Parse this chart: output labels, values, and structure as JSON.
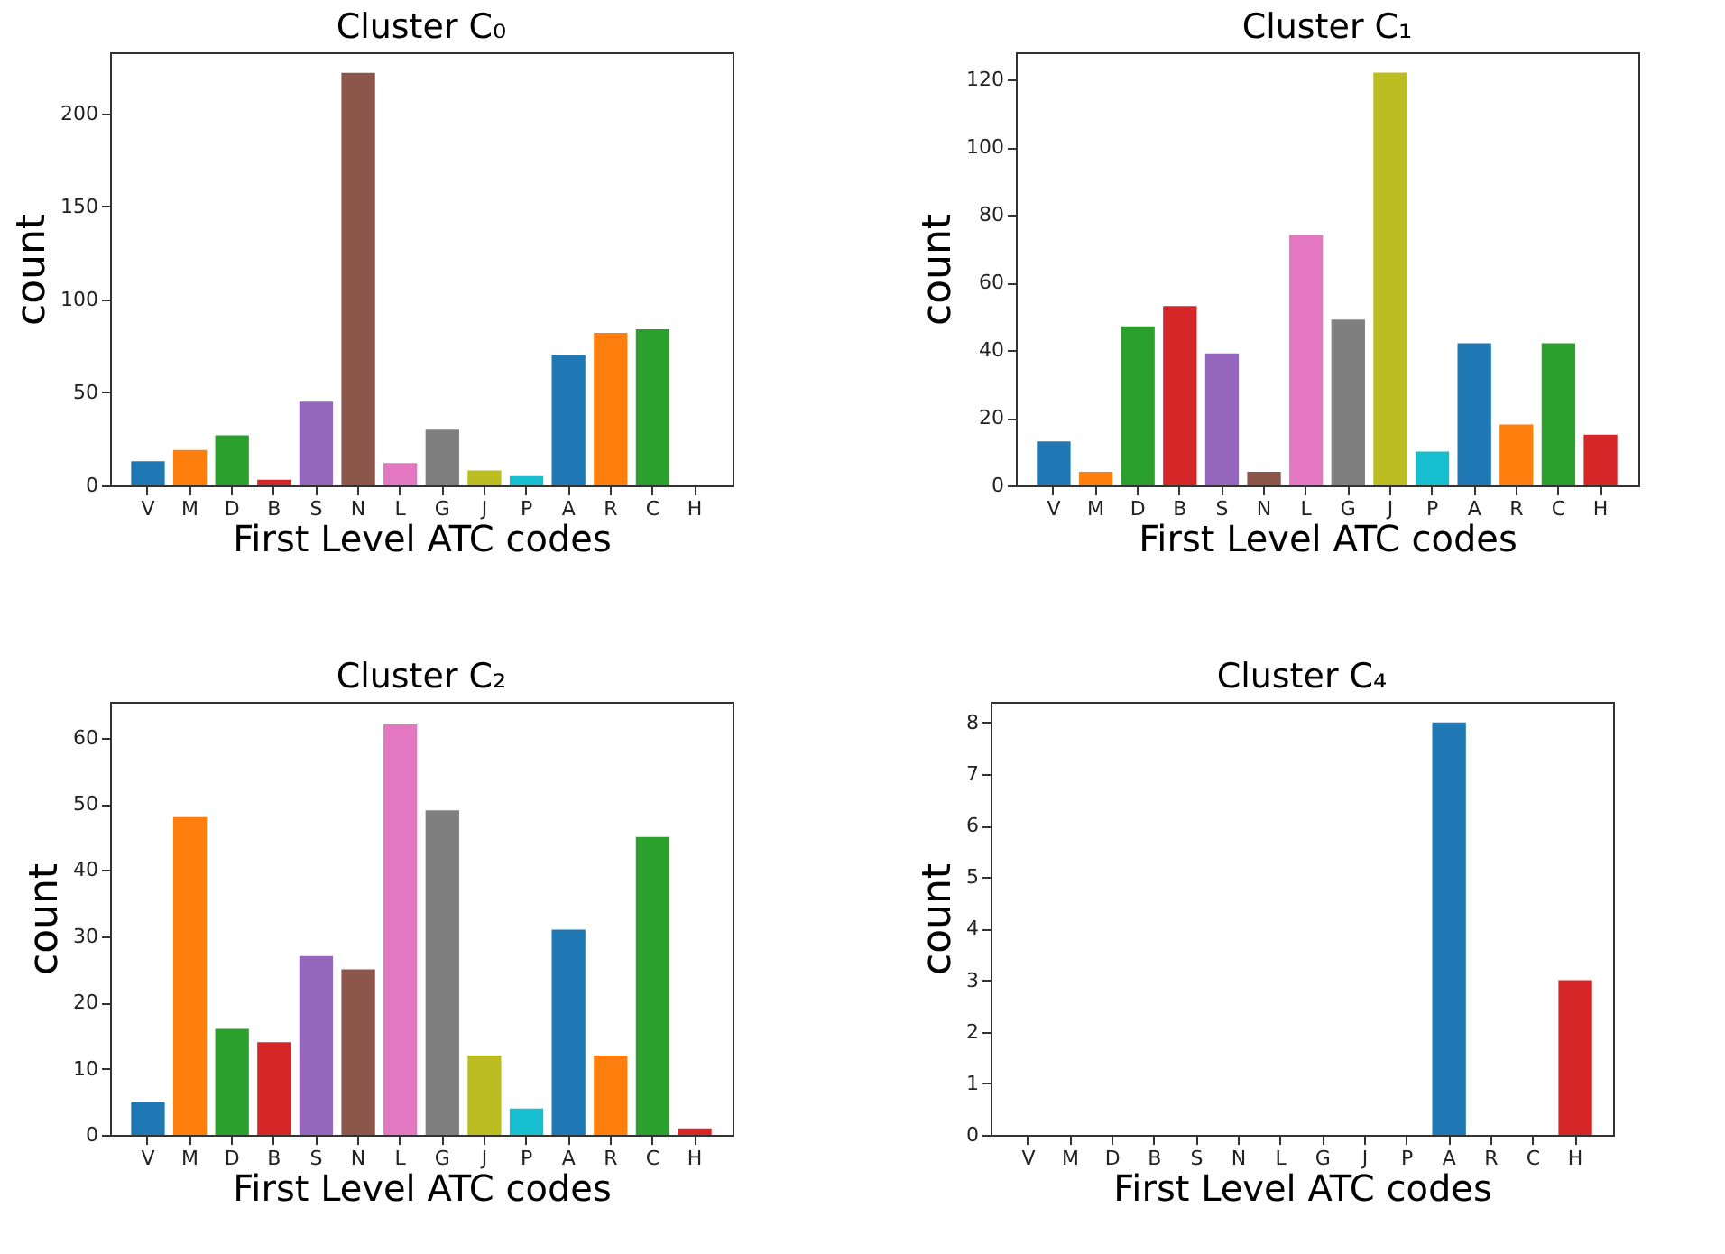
{
  "chart_data": [
    {
      "type": "bar",
      "title": "Cluster C₀",
      "xlabel": "First Level ATC codes",
      "ylabel": "count",
      "categories": [
        "V",
        "M",
        "D",
        "B",
        "S",
        "N",
        "L",
        "G",
        "J",
        "P",
        "A",
        "R",
        "C",
        "H"
      ],
      "values": [
        13,
        19,
        27,
        3,
        45,
        222,
        12,
        30,
        8,
        5,
        70,
        82,
        84,
        0
      ],
      "colors": [
        "#1f77b4",
        "#ff7f0e",
        "#2ca02c",
        "#d62728",
        "#9467bd",
        "#8c564b",
        "#e377c2",
        "#7f7f7f",
        "#bcbd22",
        "#17becf",
        "#1f77b4",
        "#ff7f0e",
        "#2ca02c",
        "#d62728"
      ],
      "ylim": [
        0,
        233
      ],
      "yticks": [
        0,
        50,
        100,
        150,
        200
      ],
      "grid": false,
      "legend": false
    },
    {
      "type": "bar",
      "title": "Cluster C₁",
      "xlabel": "First Level ATC codes",
      "ylabel": "count",
      "categories": [
        "V",
        "M",
        "D",
        "B",
        "S",
        "N",
        "L",
        "G",
        "J",
        "P",
        "A",
        "R",
        "C",
        "H"
      ],
      "values": [
        13,
        4,
        47,
        53,
        39,
        4,
        74,
        49,
        122,
        10,
        42,
        18,
        42,
        15
      ],
      "colors": [
        "#1f77b4",
        "#ff7f0e",
        "#2ca02c",
        "#d62728",
        "#9467bd",
        "#8c564b",
        "#e377c2",
        "#7f7f7f",
        "#bcbd22",
        "#17becf",
        "#1f77b4",
        "#ff7f0e",
        "#2ca02c",
        "#d62728"
      ],
      "ylim": [
        0,
        128
      ],
      "yticks": [
        0,
        20,
        40,
        60,
        80,
        100,
        120
      ],
      "grid": false,
      "legend": false
    },
    {
      "type": "bar",
      "title": "Cluster C₂",
      "xlabel": "First Level ATC codes",
      "ylabel": "count",
      "categories": [
        "V",
        "M",
        "D",
        "B",
        "S",
        "N",
        "L",
        "G",
        "J",
        "P",
        "A",
        "R",
        "C",
        "H"
      ],
      "values": [
        5,
        48,
        16,
        14,
        27,
        25,
        62,
        49,
        12,
        4,
        31,
        12,
        45,
        1
      ],
      "colors": [
        "#1f77b4",
        "#ff7f0e",
        "#2ca02c",
        "#d62728",
        "#9467bd",
        "#8c564b",
        "#e377c2",
        "#7f7f7f",
        "#bcbd22",
        "#17becf",
        "#1f77b4",
        "#ff7f0e",
        "#2ca02c",
        "#d62728"
      ],
      "ylim": [
        0,
        65.4
      ],
      "yticks": [
        0,
        10,
        20,
        30,
        40,
        50,
        60
      ],
      "grid": false,
      "legend": false
    },
    {
      "type": "bar",
      "title": "Cluster C₄",
      "xlabel": "First Level ATC codes",
      "ylabel": "count",
      "categories": [
        "V",
        "M",
        "D",
        "B",
        "S",
        "N",
        "L",
        "G",
        "J",
        "P",
        "A",
        "R",
        "C",
        "H"
      ],
      "values": [
        0,
        0,
        0,
        0,
        0,
        0,
        0,
        0,
        0,
        0,
        8,
        0,
        0,
        3
      ],
      "colors": [
        "#1f77b4",
        "#ff7f0e",
        "#2ca02c",
        "#d62728",
        "#9467bd",
        "#8c564b",
        "#e377c2",
        "#7f7f7f",
        "#bcbd22",
        "#17becf",
        "#1f77b4",
        "#ff7f0e",
        "#2ca02c",
        "#d62728"
      ],
      "ylim": [
        0,
        8.4
      ],
      "yticks": [
        0,
        1,
        2,
        3,
        4,
        5,
        6,
        7,
        8
      ],
      "grid": false,
      "legend": false
    }
  ]
}
